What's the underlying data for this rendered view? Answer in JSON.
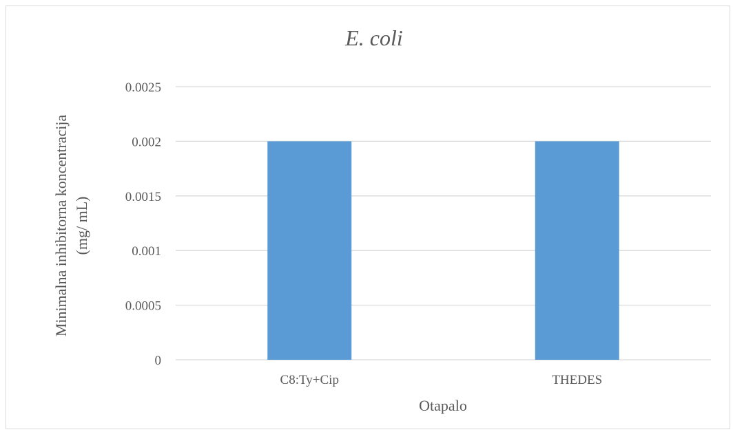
{
  "chart_data": {
    "type": "bar",
    "title": "E. coli",
    "xlabel": "Otapalo",
    "ylabel": [
      "Minimalna inhibitorna koncentracija",
      "(mg/ mL)"
    ],
    "categories": [
      "C8:Ty+Cip",
      "THEDES"
    ],
    "values": [
      0.002,
      0.002
    ],
    "ylim": [
      0,
      0.0025
    ],
    "yticks": [
      0,
      0.0005,
      0.001,
      0.0015,
      0.002,
      0.0025
    ],
    "ytick_labels": [
      "0",
      "0.0005",
      "0.001",
      "0.0015",
      "0.002",
      "0.0025"
    ],
    "grid": true,
    "legend": "none",
    "colors": {
      "bar": "#5b9bd5",
      "grid": "#d9d9d9",
      "text": "#595959"
    }
  }
}
